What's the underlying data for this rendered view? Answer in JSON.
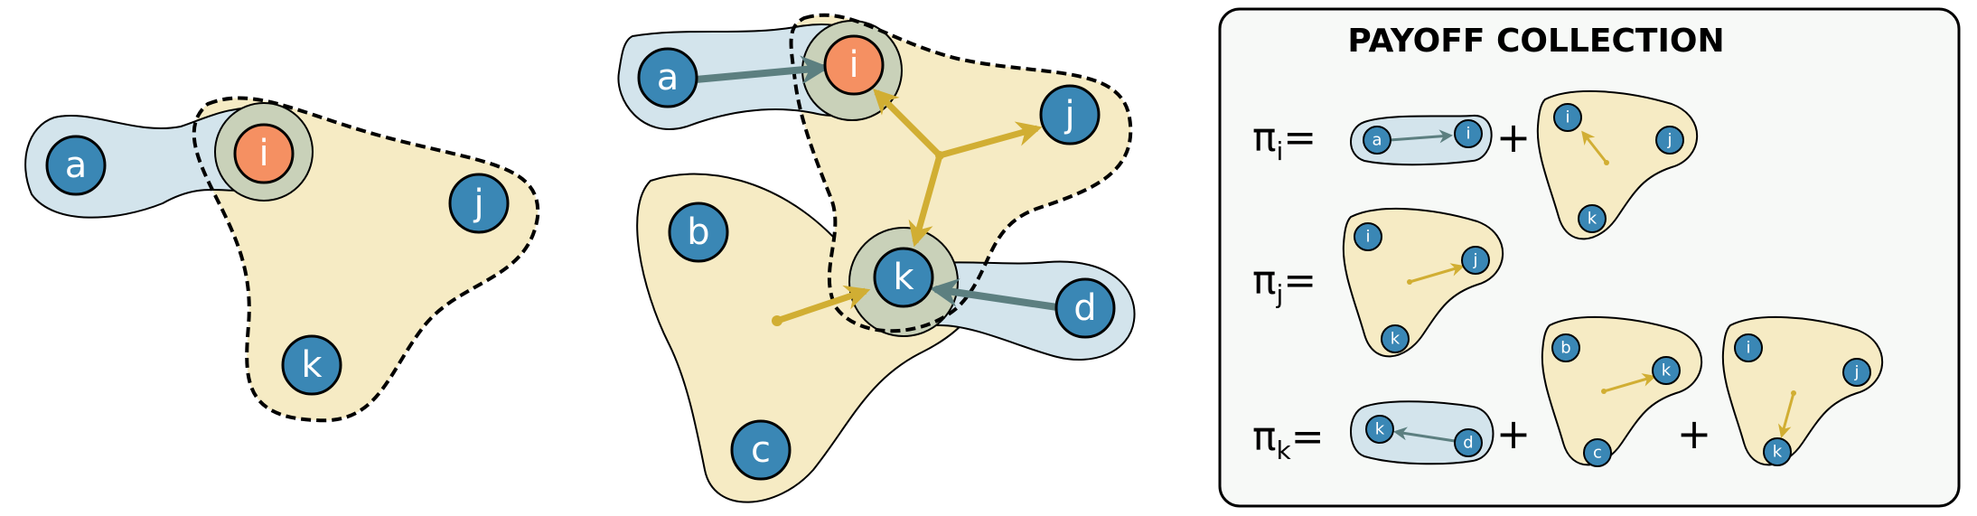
{
  "colors": {
    "node_blue": "#3a87b5",
    "node_orange": "#f59062",
    "pair_fill": "#d3e4ec",
    "group_fill": "#f6ebc4",
    "overlap_fill": "#c9d1b9",
    "arrow_gold": "#d1ae33",
    "arrow_slate": "#5c7f80",
    "box_fill": "#f7f9f7"
  },
  "nodes": {
    "a": "a",
    "b": "b",
    "c": "c",
    "d": "d",
    "i": "i",
    "j": "j",
    "k": "k"
  },
  "panel": {
    "title": "PAYOFF COLLECTION",
    "rows": [
      {
        "symbol": "π",
        "sub": "i",
        "eq": "="
      },
      {
        "symbol": "π",
        "sub": "j",
        "eq": "="
      },
      {
        "symbol": "π",
        "sub": "k",
        "eq": "="
      }
    ],
    "plus": "+"
  }
}
